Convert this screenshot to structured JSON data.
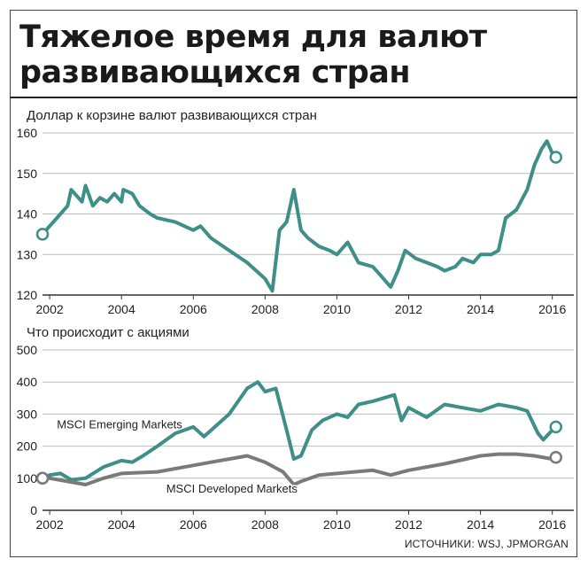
{
  "title": "Тяжелое время для валют развивающихся стран",
  "source": "ИСТОЧНИКИ: WSJ, JPMORGAN",
  "colors": {
    "teal": "#3e8f87",
    "gray": "#7a7a7a",
    "grid": "#bdbdbd",
    "axis": "#333333"
  },
  "chart_data": [
    {
      "type": "line",
      "title": "Доллар к корзине валют развивающихся стран",
      "xlabel": "",
      "ylabel": "",
      "xlim": [
        2001.8,
        2016.6
      ],
      "ylim": [
        120,
        160
      ],
      "yticks": [
        120,
        130,
        140,
        150,
        160
      ],
      "xticks": [
        2002,
        2004,
        2006,
        2008,
        2010,
        2012,
        2014,
        2016
      ],
      "grid": true,
      "series": [
        {
          "color": "#3e8f87",
          "x": [
            2001.8,
            2002.0,
            2002.3,
            2002.5,
            2002.6,
            2002.9,
            2003.0,
            2003.2,
            2003.4,
            2003.6,
            2003.8,
            2004.0,
            2004.05,
            2004.3,
            2004.5,
            2004.8,
            2005.0,
            2005.5,
            2006.0,
            2006.2,
            2006.5,
            2007.0,
            2007.5,
            2008.0,
            2008.2,
            2008.4,
            2008.6,
            2008.8,
            2009.0,
            2009.2,
            2009.5,
            2009.8,
            2010.0,
            2010.3,
            2010.6,
            2011.0,
            2011.2,
            2011.5,
            2011.7,
            2011.9,
            2012.2,
            2012.5,
            2012.8,
            2013.0,
            2013.3,
            2013.5,
            2013.8,
            2014.0,
            2014.3,
            2014.5,
            2014.7,
            2015.0,
            2015.3,
            2015.5,
            2015.7,
            2015.85,
            2016.0,
            2016.1
          ],
          "y": [
            135,
            137,
            140,
            142,
            146,
            143,
            147,
            142,
            144,
            143,
            145,
            143,
            146,
            145,
            142,
            140,
            139,
            138,
            136,
            137,
            134,
            131,
            128,
            124,
            121,
            136,
            138,
            146,
            136,
            134,
            132,
            131,
            130,
            133,
            128,
            127,
            125,
            122,
            126,
            131,
            129,
            128,
            127,
            126,
            127,
            129,
            128,
            130,
            130,
            131,
            139,
            141,
            146,
            152,
            156,
            158,
            155,
            154
          ]
        }
      ],
      "last_value": 154,
      "first_value": 135
    },
    {
      "type": "line",
      "title": "Что происходит с акциями",
      "xlabel": "",
      "ylabel": "",
      "xlim": [
        2001.8,
        2016.6
      ],
      "ylim": [
        0,
        500
      ],
      "yticks": [
        0,
        100,
        200,
        300,
        400,
        500
      ],
      "xticks": [
        2002,
        2004,
        2006,
        2008,
        2010,
        2012,
        2014,
        2016
      ],
      "grid": true,
      "series": [
        {
          "name": "MSCI Emerging Markets",
          "color": "#3e8f87",
          "x": [
            2001.8,
            2002.0,
            2002.3,
            2002.6,
            2003.0,
            2003.5,
            2004.0,
            2004.3,
            2004.6,
            2005.0,
            2005.5,
            2006.0,
            2006.3,
            2006.5,
            2007.0,
            2007.5,
            2007.8,
            2008.0,
            2008.3,
            2008.6,
            2008.8,
            2009.0,
            2009.3,
            2009.6,
            2010.0,
            2010.3,
            2010.6,
            2011.0,
            2011.3,
            2011.6,
            2011.8,
            2012.0,
            2012.5,
            2013.0,
            2013.5,
            2014.0,
            2014.5,
            2015.0,
            2015.3,
            2015.6,
            2015.75,
            2016.0,
            2016.1
          ],
          "y": [
            100,
            110,
            115,
            95,
            100,
            135,
            155,
            150,
            170,
            200,
            240,
            260,
            230,
            250,
            300,
            380,
            400,
            370,
            380,
            250,
            160,
            170,
            250,
            280,
            300,
            290,
            330,
            340,
            350,
            360,
            280,
            320,
            290,
            330,
            320,
            310,
            330,
            320,
            310,
            240,
            220,
            250,
            260
          ]
        },
        {
          "name": "MSCI Developed Markets",
          "color": "#7a7a7a",
          "x": [
            2001.8,
            2002.0,
            2002.5,
            2003.0,
            2003.5,
            2004.0,
            2005.0,
            2006.0,
            2006.5,
            2007.0,
            2007.5,
            2008.0,
            2008.5,
            2008.8,
            2009.0,
            2009.5,
            2010.0,
            2011.0,
            2011.5,
            2012.0,
            2013.0,
            2014.0,
            2014.5,
            2015.0,
            2015.5,
            2016.0,
            2016.1
          ],
          "y": [
            100,
            100,
            90,
            80,
            100,
            115,
            120,
            140,
            150,
            160,
            170,
            150,
            120,
            80,
            90,
            110,
            115,
            125,
            110,
            125,
            145,
            170,
            175,
            175,
            170,
            160,
            165
          ]
        }
      ],
      "annotations": [
        "MSCI Emerging Markets",
        "MSCI Developed Markets"
      ]
    }
  ]
}
